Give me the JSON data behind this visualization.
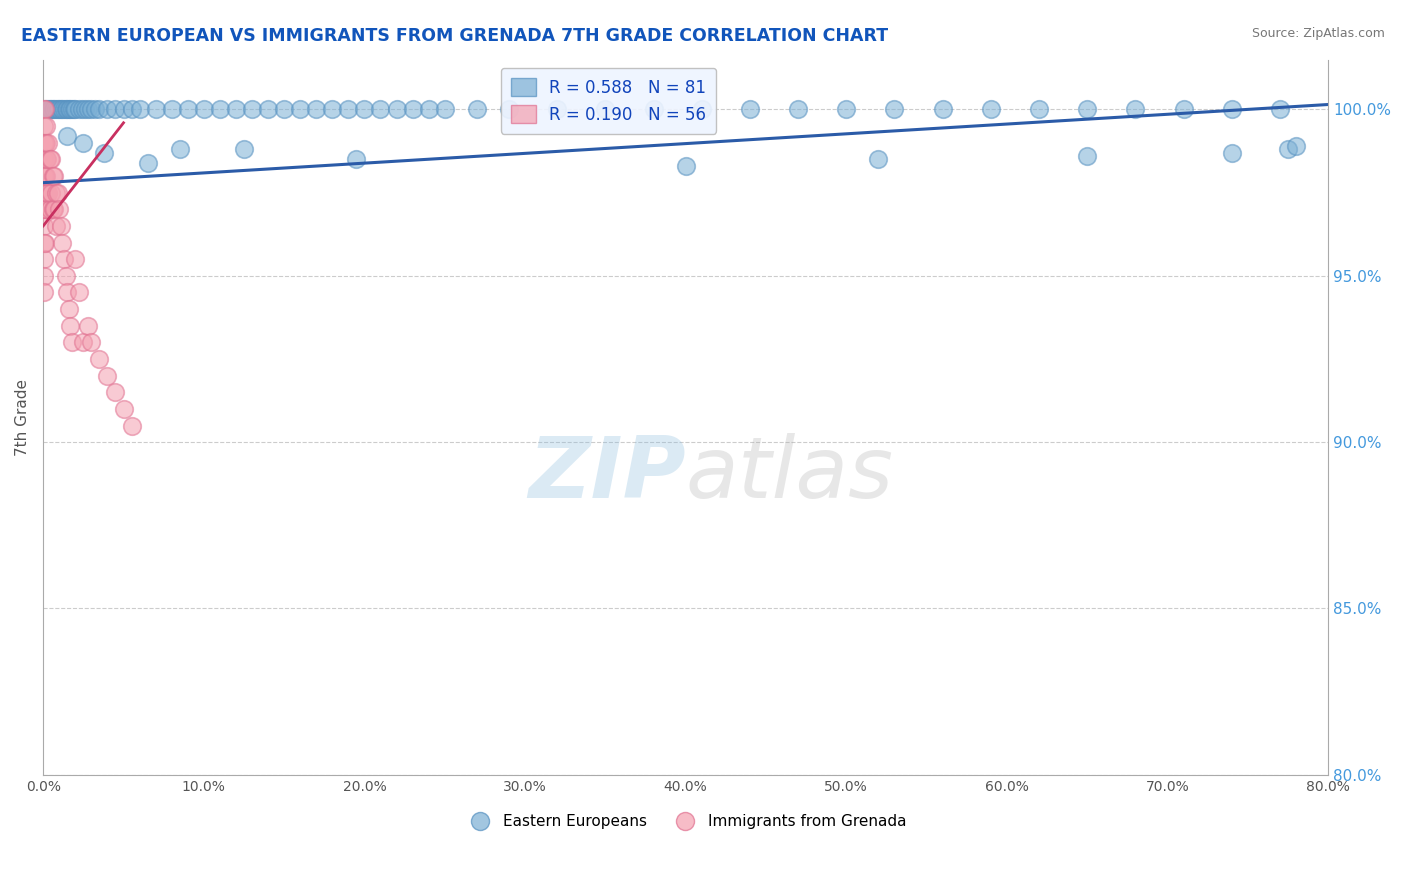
{
  "title": "EASTERN EUROPEAN VS IMMIGRANTS FROM GRENADA 7TH GRADE CORRELATION CHART",
  "source": "Source: ZipAtlas.com",
  "ylabel": "7th Grade",
  "watermark_zip": "ZIP",
  "watermark_atlas": "atlas",
  "xlim": [
    0.0,
    80.0
  ],
  "ylim": [
    80.0,
    101.5
  ],
  "yticks": [
    80.0,
    85.0,
    90.0,
    95.0,
    100.0
  ],
  "xticks": [
    0.0,
    10.0,
    20.0,
    30.0,
    40.0,
    50.0,
    60.0,
    70.0,
    80.0
  ],
  "blue_R": 0.588,
  "blue_N": 81,
  "pink_R": 0.19,
  "pink_N": 56,
  "blue_color": "#7BAFD4",
  "pink_color": "#F4A0B0",
  "blue_edge_color": "#5590C0",
  "pink_edge_color": "#E07090",
  "blue_line_color": "#2B5BA8",
  "pink_line_color": "#C83060",
  "legend_R_color": "#1144BB",
  "title_color": "#1155BB",
  "source_color": "#777777",
  "ylabel_color": "#555555",
  "tick_color": "#555555",
  "right_tick_color": "#4499DD",
  "grid_color": "#CCCCCC",
  "blue_line_x0": 0.0,
  "blue_line_y0": 97.8,
  "blue_line_x1": 80.0,
  "blue_line_y1": 100.15,
  "pink_line_x0": 0.0,
  "pink_line_y0": 96.5,
  "pink_line_x1": 5.0,
  "pink_line_y1": 99.6,
  "blue_scatter_x": [
    0.2,
    0.3,
    0.4,
    0.5,
    0.6,
    0.7,
    0.8,
    0.9,
    1.0,
    1.1,
    1.2,
    1.3,
    1.4,
    1.5,
    1.6,
    1.7,
    1.8,
    1.9,
    2.0,
    2.2,
    2.4,
    2.6,
    2.8,
    3.0,
    3.2,
    3.5,
    4.0,
    4.5,
    5.0,
    5.5,
    6.0,
    7.0,
    8.0,
    9.0,
    10.0,
    11.0,
    12.0,
    13.0,
    14.0,
    15.0,
    16.0,
    17.0,
    18.0,
    19.0,
    20.0,
    21.0,
    22.0,
    23.0,
    24.0,
    25.0,
    27.0,
    29.0,
    32.0,
    35.0,
    38.0,
    41.0,
    44.0,
    47.0,
    50.0,
    53.0,
    56.0,
    59.0,
    62.0,
    65.0,
    68.0,
    71.0,
    74.0,
    77.0,
    8.5,
    19.5,
    40.0,
    52.0,
    65.0,
    74.0,
    77.5,
    78.0,
    1.5,
    2.5,
    3.8,
    6.5,
    12.5
  ],
  "blue_scatter_y": [
    100.0,
    100.0,
    100.0,
    100.0,
    100.0,
    100.0,
    100.0,
    100.0,
    100.0,
    100.0,
    100.0,
    100.0,
    100.0,
    100.0,
    100.0,
    100.0,
    100.0,
    100.0,
    100.0,
    100.0,
    100.0,
    100.0,
    100.0,
    100.0,
    100.0,
    100.0,
    100.0,
    100.0,
    100.0,
    100.0,
    100.0,
    100.0,
    100.0,
    100.0,
    100.0,
    100.0,
    100.0,
    100.0,
    100.0,
    100.0,
    100.0,
    100.0,
    100.0,
    100.0,
    100.0,
    100.0,
    100.0,
    100.0,
    100.0,
    100.0,
    100.0,
    100.0,
    100.0,
    100.0,
    100.0,
    100.0,
    100.0,
    100.0,
    100.0,
    100.0,
    100.0,
    100.0,
    100.0,
    100.0,
    100.0,
    100.0,
    100.0,
    100.0,
    98.8,
    98.5,
    98.3,
    98.5,
    98.6,
    98.7,
    98.8,
    98.9,
    99.2,
    99.0,
    98.7,
    98.4,
    98.8
  ],
  "pink_scatter_x": [
    0.05,
    0.05,
    0.05,
    0.05,
    0.05,
    0.05,
    0.05,
    0.05,
    0.05,
    0.05,
    0.05,
    0.05,
    0.1,
    0.1,
    0.1,
    0.1,
    0.1,
    0.15,
    0.15,
    0.15,
    0.2,
    0.2,
    0.2,
    0.25,
    0.3,
    0.3,
    0.4,
    0.4,
    0.5,
    0.5,
    0.6,
    0.6,
    0.7,
    0.7,
    0.8,
    0.8,
    0.9,
    1.0,
    1.1,
    1.2,
    1.3,
    1.4,
    1.5,
    1.6,
    1.7,
    1.8,
    2.0,
    2.2,
    2.5,
    2.8,
    3.0,
    3.5,
    4.0,
    4.5,
    5.0,
    5.5
  ],
  "pink_scatter_y": [
    100.0,
    99.5,
    99.0,
    98.5,
    98.0,
    97.5,
    97.0,
    96.5,
    96.0,
    95.5,
    95.0,
    94.5,
    100.0,
    99.0,
    98.0,
    97.0,
    96.0,
    99.5,
    98.5,
    97.5,
    99.0,
    98.0,
    97.0,
    98.5,
    99.0,
    97.5,
    98.5,
    97.0,
    98.5,
    97.5,
    98.0,
    97.0,
    98.0,
    97.0,
    97.5,
    96.5,
    97.5,
    97.0,
    96.5,
    96.0,
    95.5,
    95.0,
    94.5,
    94.0,
    93.5,
    93.0,
    95.5,
    94.5,
    93.0,
    93.5,
    93.0,
    92.5,
    92.0,
    91.5,
    91.0,
    90.5
  ]
}
